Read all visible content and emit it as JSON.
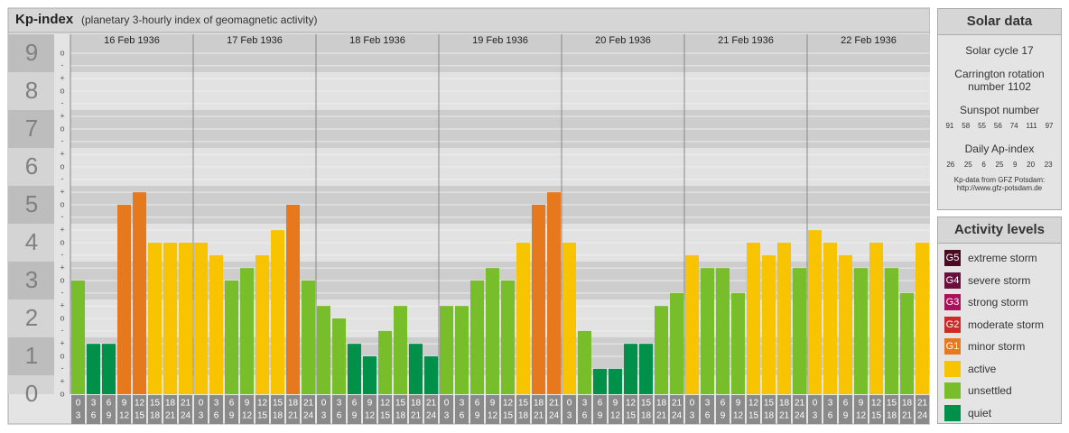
{
  "chart_data": {
    "type": "bar",
    "title": "Kp-index",
    "subtitle": "(planetary 3-hourly index of geomagnetic activity)",
    "ylim": [
      0,
      9.5
    ],
    "yticks": [
      0,
      1,
      2,
      3,
      4,
      5,
      6,
      7,
      8,
      9
    ],
    "minor_ticks": [
      {
        "value": 9,
        "label": "o"
      },
      {
        "value": 8.67,
        "label": "-"
      },
      {
        "value": 8.33,
        "label": "+"
      },
      {
        "value": 8,
        "label": "o"
      },
      {
        "value": 7.67,
        "label": "-"
      },
      {
        "value": 7.33,
        "label": "+"
      },
      {
        "value": 7,
        "label": "o"
      },
      {
        "value": 6.67,
        "label": "-"
      },
      {
        "value": 6.33,
        "label": "+"
      },
      {
        "value": 6,
        "label": "o"
      },
      {
        "value": 5.67,
        "label": "-"
      },
      {
        "value": 5.33,
        "label": "+"
      },
      {
        "value": 5,
        "label": "o"
      },
      {
        "value": 4.67,
        "label": "-"
      },
      {
        "value": 4.33,
        "label": "+"
      },
      {
        "value": 4,
        "label": "o"
      },
      {
        "value": 3.67,
        "label": "-"
      },
      {
        "value": 3.33,
        "label": "+"
      },
      {
        "value": 3,
        "label": "o"
      },
      {
        "value": 2.67,
        "label": "-"
      },
      {
        "value": 2.33,
        "label": "+"
      },
      {
        "value": 2,
        "label": "o"
      },
      {
        "value": 1.67,
        "label": "-"
      },
      {
        "value": 1.33,
        "label": "+"
      },
      {
        "value": 1,
        "label": "o"
      },
      {
        "value": 0.67,
        "label": "-"
      },
      {
        "value": 0.33,
        "label": "+"
      },
      {
        "value": 0,
        "label": "o"
      }
    ],
    "hours": [
      [
        0,
        3
      ],
      [
        3,
        6
      ],
      [
        6,
        9
      ],
      [
        9,
        12
      ],
      [
        12,
        15
      ],
      [
        15,
        18
      ],
      [
        18,
        21
      ],
      [
        21,
        24
      ]
    ],
    "days": [
      {
        "label": "16 Feb 1936",
        "values": [
          3,
          1.33,
          1.33,
          5,
          5.33,
          4,
          4,
          4
        ],
        "colors": [
          "#78be2a",
          "#00904a",
          "#00904a",
          "#e6781e",
          "#e6781e",
          "#f8c301",
          "#f8c301",
          "#f8c301"
        ]
      },
      {
        "label": "17 Feb 1936",
        "values": [
          4,
          3.67,
          3,
          3.33,
          3.67,
          4.33,
          5,
          3
        ],
        "colors": [
          "#f8c301",
          "#f8c301",
          "#78be2a",
          "#78be2a",
          "#f8c301",
          "#f8c301",
          "#e6781e",
          "#78be2a"
        ]
      },
      {
        "label": "18 Feb 1936",
        "values": [
          2.33,
          2,
          1.33,
          1,
          1.67,
          2.33,
          1.33,
          1
        ],
        "colors": [
          "#78be2a",
          "#78be2a",
          "#00904a",
          "#00904a",
          "#78be2a",
          "#78be2a",
          "#00904a",
          "#00904a"
        ]
      },
      {
        "label": "19 Feb 1936",
        "values": [
          2.33,
          2.33,
          3,
          3.33,
          3,
          4,
          5,
          5.33
        ],
        "colors": [
          "#78be2a",
          "#78be2a",
          "#78be2a",
          "#78be2a",
          "#78be2a",
          "#f8c301",
          "#e6781e",
          "#e6781e"
        ]
      },
      {
        "label": "20 Feb 1936",
        "values": [
          4,
          1.67,
          0.67,
          0.67,
          1.33,
          1.33,
          2.33,
          2.67
        ],
        "colors": [
          "#f8c301",
          "#78be2a",
          "#00904a",
          "#00904a",
          "#00904a",
          "#00904a",
          "#78be2a",
          "#78be2a"
        ]
      },
      {
        "label": "21 Feb 1936",
        "values": [
          3.67,
          3.33,
          3.33,
          2.67,
          4,
          3.67,
          4,
          3.33
        ],
        "colors": [
          "#f8c301",
          "#78be2a",
          "#78be2a",
          "#78be2a",
          "#f8c301",
          "#f8c301",
          "#f8c301",
          "#78be2a"
        ]
      },
      {
        "label": "22 Feb 1936",
        "values": [
          4.33,
          4,
          3.67,
          3.33,
          4,
          3.33,
          2.67,
          4
        ],
        "colors": [
          "#f8c301",
          "#f8c301",
          "#f8c301",
          "#78be2a",
          "#f8c301",
          "#78be2a",
          "#78be2a",
          "#f8c301"
        ]
      }
    ]
  },
  "solar_data": {
    "title": "Solar data",
    "cycle_label": "Solar cycle",
    "cycle": 17,
    "carrington_label": "Carrington rotation number",
    "carrington": 1102,
    "sunspot_label": "Sunspot number",
    "sunspots": [
      91,
      58,
      55,
      56,
      74,
      111,
      97
    ],
    "ap_label": "Daily Ap-index",
    "ap": [
      26,
      25,
      6,
      25,
      9,
      20,
      23
    ],
    "source": "Kp-data from GFZ Potsdam:",
    "source_url": "http://www.gfz-potsdam.de"
  },
  "activity_levels": {
    "title": "Activity levels",
    "items": [
      {
        "badge": "G5",
        "label": "extreme storm",
        "color": "#4a0b22"
      },
      {
        "badge": "G4",
        "label": "severe storm",
        "color": "#6c0f3f"
      },
      {
        "badge": "G3",
        "label": "strong storm",
        "color": "#a8125a"
      },
      {
        "badge": "G2",
        "label": "moderate storm",
        "color": "#cf2a2a"
      },
      {
        "badge": "G1",
        "label": "minor storm",
        "color": "#e6781e"
      },
      {
        "label": "active",
        "color": "#f8c301"
      },
      {
        "label": "unsettled",
        "color": "#78be2a"
      },
      {
        "label": "quiet",
        "color": "#00904a"
      }
    ]
  }
}
